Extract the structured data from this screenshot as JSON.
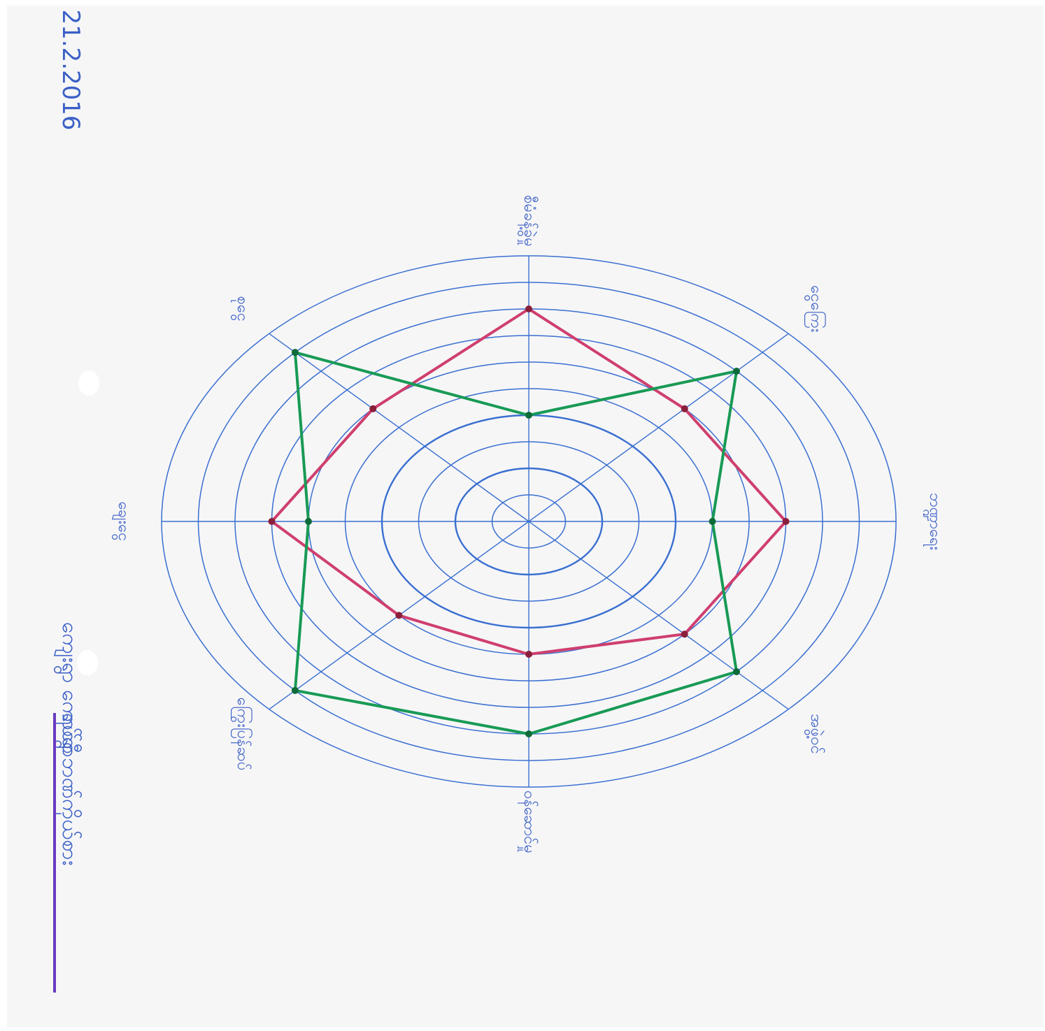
{
  "date": "21.2.2016",
  "title_line1": "ရပ်ရွာဘဏ်ကိုယ်စား",
  "title_line2": "ကျေးရွာ ကောင်စီ",
  "colors": {
    "grid": "#3a6fd0",
    "series_red": "#cf3f6e",
    "series_green": "#189a55",
    "underline": "#6a3bc0",
    "ink": "#3a5fc6"
  },
  "chart_data": {
    "type": "radar",
    "categories": [
      "စီမံခန့်ခွဲမှု",
      "ငွေကြေး",
      "ဘဏ္ဍာရေး",
      "အဖွဲ့ဝင်",
      "ဝန်ဆောင်မှု",
      "ကြွေးပြန်ဆပ်",
      "ချေးငွေ",
      "စုငွေ"
    ],
    "rlim": [
      0,
      10
    ],
    "rings": 10,
    "series": [
      {
        "values": [
          8,
          6,
          7,
          6,
          5,
          5,
          7,
          6
        ]
      },
      {
        "values": [
          4,
          8,
          5,
          8,
          8,
          9,
          6,
          9
        ]
      }
    ]
  }
}
